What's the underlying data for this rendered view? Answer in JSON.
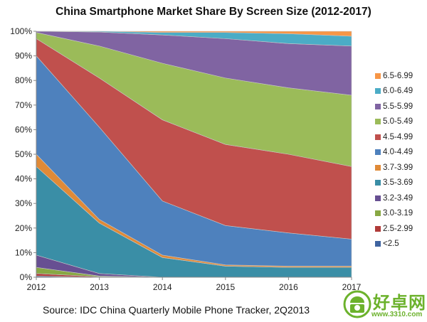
{
  "chart_data": {
    "type": "area",
    "stacked": true,
    "percent": true,
    "title": "China Smartphone Market Share By Screen Size (2012-2017)",
    "source": "Source: IDC China Quarterly Mobile Phone Tracker, 2Q2013",
    "x": [
      "2012",
      "2013",
      "2014",
      "2015",
      "2016",
      "2017"
    ],
    "yticks": [
      "0%",
      "10%",
      "20%",
      "30%",
      "40%",
      "50%",
      "60%",
      "70%",
      "80%",
      "90%",
      "100%"
    ],
    "ylim": [
      0,
      100
    ],
    "legend_position": "right",
    "series": [
      {
        "name": "<2.5",
        "color": "#3f64a0",
        "values": [
          0.5,
          0,
          0,
          0,
          0,
          0
        ]
      },
      {
        "name": "2.5-2.99",
        "color": "#b03a38",
        "values": [
          1,
          0.2,
          0,
          0,
          0,
          0
        ]
      },
      {
        "name": "3.0-3.19",
        "color": "#88a843",
        "values": [
          2.5,
          0.3,
          0,
          0,
          0,
          0
        ]
      },
      {
        "name": "3.2-3.49",
        "color": "#674f92",
        "values": [
          5,
          1,
          0,
          0,
          0,
          0
        ]
      },
      {
        "name": "3.5-3.69",
        "color": "#3a8ea6",
        "values": [
          36,
          20.5,
          8,
          4.5,
          4,
          4
        ]
      },
      {
        "name": "3.7-3.99",
        "color": "#e08a37",
        "values": [
          5,
          1.5,
          1,
          0.5,
          0.5,
          0.5
        ]
      },
      {
        "name": "4.0-4.49",
        "color": "#4e81bd",
        "values": [
          40,
          37.5,
          22,
          16,
          13.5,
          11
        ]
      },
      {
        "name": "4.5-4.99",
        "color": "#c0504d",
        "values": [
          7,
          20,
          33,
          33,
          32,
          29.5
        ]
      },
      {
        "name": "5.0-5.49",
        "color": "#9bbb59",
        "values": [
          2.5,
          13,
          23,
          27,
          27,
          29
        ]
      },
      {
        "name": "5.5-5.99",
        "color": "#8064a2",
        "values": [
          0.5,
          5.7,
          11.5,
          16,
          18,
          20
        ]
      },
      {
        "name": "6.0-6.49",
        "color": "#4bacc6",
        "values": [
          0,
          0.3,
          1,
          2.5,
          4,
          4
        ]
      },
      {
        "name": "6.5-6.99",
        "color": "#f79646",
        "values": [
          0,
          0,
          0.5,
          0.5,
          1,
          2
        ]
      }
    ]
  },
  "watermark": {
    "text": "好卓网",
    "url": "www.3310.com"
  }
}
